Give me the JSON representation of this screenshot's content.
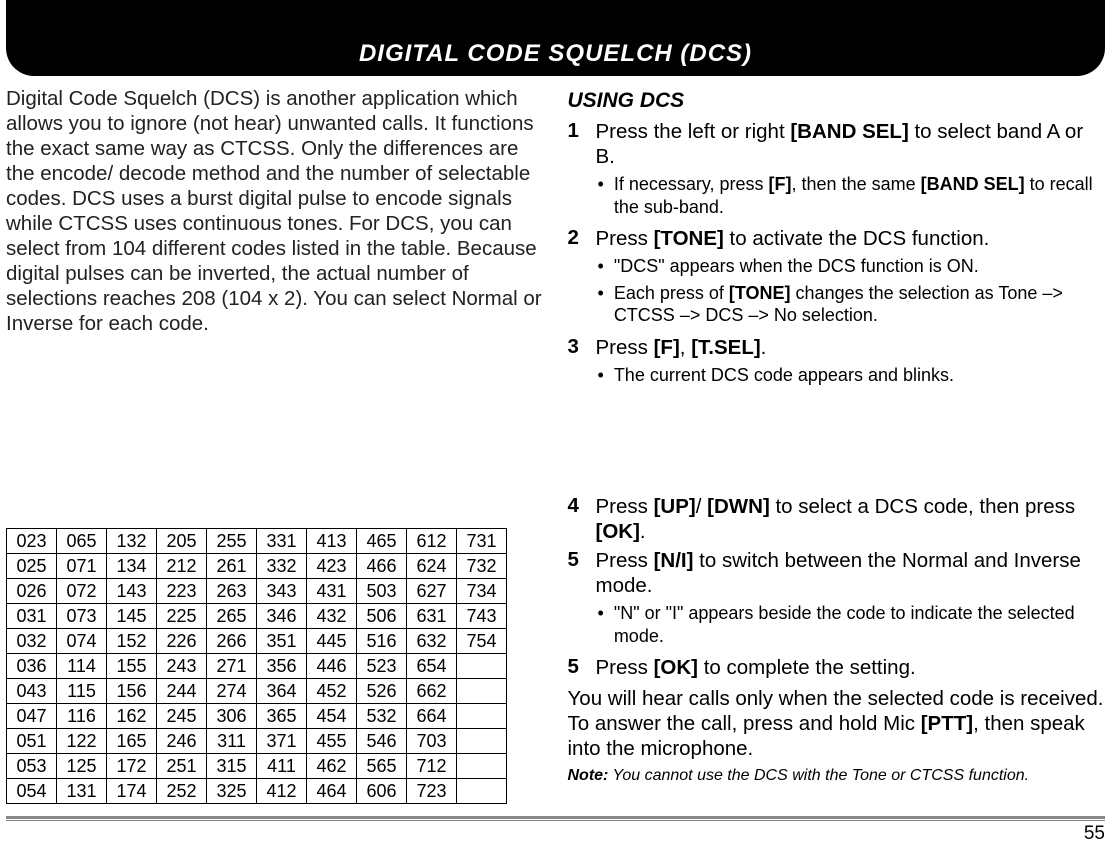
{
  "header": {
    "title": "DIGITAL CODE SQUELCH (DCS)"
  },
  "left": {
    "intro": "Digital Code Squelch (DCS) is another application which allows you to ignore (not hear) unwanted calls.  It functions the exact same way as CTCSS.  Only the differences are the encode/ decode method and the number of selectable codes.  DCS uses a burst digital pulse to encode signals while CTCSS uses continuous tones.  For DCS, you can select from 104 different codes listed in the table.  Because digital pulses can be inverted, the actual number of selections reaches 208 (104 x 2).  You can select Normal or Inverse for each code."
  },
  "table": {
    "rows": [
      [
        "023",
        "065",
        "132",
        "205",
        "255",
        "331",
        "413",
        "465",
        "612",
        "731"
      ],
      [
        "025",
        "071",
        "134",
        "212",
        "261",
        "332",
        "423",
        "466",
        "624",
        "732"
      ],
      [
        "026",
        "072",
        "143",
        "223",
        "263",
        "343",
        "431",
        "503",
        "627",
        "734"
      ],
      [
        "031",
        "073",
        "145",
        "225",
        "265",
        "346",
        "432",
        "506",
        "631",
        "743"
      ],
      [
        "032",
        "074",
        "152",
        "226",
        "266",
        "351",
        "445",
        "516",
        "632",
        "754"
      ],
      [
        "036",
        "114",
        "155",
        "243",
        "271",
        "356",
        "446",
        "523",
        "654",
        ""
      ],
      [
        "043",
        "115",
        "156",
        "244",
        "274",
        "364",
        "452",
        "526",
        "662",
        ""
      ],
      [
        "047",
        "116",
        "162",
        "245",
        "306",
        "365",
        "454",
        "532",
        "664",
        ""
      ],
      [
        "051",
        "122",
        "165",
        "246",
        "311",
        "371",
        "455",
        "546",
        "703",
        ""
      ],
      [
        "053",
        "125",
        "172",
        "251",
        "315",
        "411",
        "462",
        "565",
        "712",
        ""
      ],
      [
        "054",
        "131",
        "174",
        "252",
        "325",
        "412",
        "464",
        "606",
        "723",
        ""
      ]
    ]
  },
  "right": {
    "section_title": "USING DCS",
    "s1_num": "1",
    "s1_a": "Press the left or right ",
    "s1_b": "[BAND SEL]",
    "s1_c": " to select band A or B.",
    "s1_bul1_a": "If necessary,  press ",
    "s1_bul1_b": "[F]",
    "s1_bul1_c": ", then the same ",
    "s1_bul1_d": "[BAND SEL]",
    "s1_bul1_e": " to recall the sub-band.",
    "s2_num": "2",
    "s2_a": "Press ",
    "s2_b": "[TONE]",
    "s2_c": " to activate the DCS function.",
    "s2_bul1": "\"DCS\" appears when the DCS function is ON.",
    "s2_bul2_a": "Each press of ",
    "s2_bul2_b": "[TONE]",
    "s2_bul2_c": " changes the selection as Tone –> CTCSS –> DCS –> No selection.",
    "s3_num": "3",
    "s3_a": "Press ",
    "s3_b": "[F]",
    "s3_c": ", ",
    "s3_d": "[T.SEL]",
    "s3_e": ".",
    "s3_bul1": "The current DCS code appears and blinks.",
    "s4_num": "4",
    "s4_a": "Press ",
    "s4_b": "[UP]",
    "s4_c": "/ ",
    "s4_d": "[DWN]",
    "s4_e": " to select a DCS code, then press ",
    "s4_f": "[OK]",
    "s4_g": ".",
    "s5_num": "5",
    "s5_a": "Press ",
    "s5_b": "[N/I]",
    "s5_c": " to switch between the Normal and Inverse mode.",
    "s5_bul1": "\"N\" or \"I\" appears beside the code to indicate the selected mode.",
    "s6_num": "5",
    "s6_a": "Press ",
    "s6_b": "[OK]",
    "s6_c": " to complete the setting.",
    "closing_a": "You will hear calls only when the selected code is received.  To answer the call, press and hold Mic ",
    "closing_b": "[PTT]",
    "closing_c": ", then speak into the microphone.",
    "note_label": "Note:",
    "note_text": "  You cannot use the DCS with the Tone or CTCSS function."
  },
  "page_number": "55"
}
